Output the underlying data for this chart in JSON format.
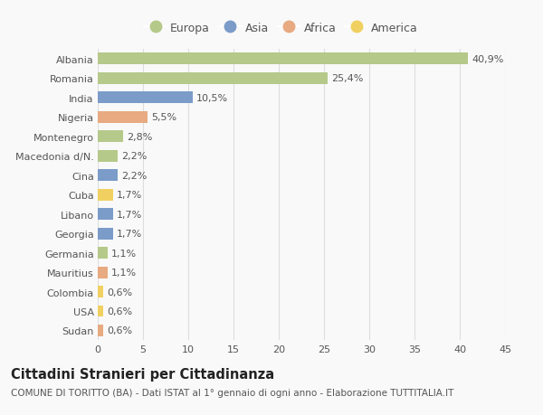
{
  "categories": [
    "Albania",
    "Romania",
    "India",
    "Nigeria",
    "Montenegro",
    "Macedonia d/N.",
    "Cina",
    "Cuba",
    "Libano",
    "Georgia",
    "Germania",
    "Mauritius",
    "Colombia",
    "USA",
    "Sudan"
  ],
  "values": [
    40.9,
    25.4,
    10.5,
    5.5,
    2.8,
    2.2,
    2.2,
    1.7,
    1.7,
    1.7,
    1.1,
    1.1,
    0.6,
    0.6,
    0.6
  ],
  "labels": [
    "40,9%",
    "25,4%",
    "10,5%",
    "5,5%",
    "2,8%",
    "2,2%",
    "2,2%",
    "1,7%",
    "1,7%",
    "1,7%",
    "1,1%",
    "1,1%",
    "0,6%",
    "0,6%",
    "0,6%"
  ],
  "continent": [
    "Europa",
    "Europa",
    "Asia",
    "Africa",
    "Europa",
    "Europa",
    "Asia",
    "America",
    "Asia",
    "Asia",
    "Europa",
    "Africa",
    "America",
    "America",
    "Africa"
  ],
  "colors": {
    "Europa": "#b5c98a",
    "Asia": "#7b9cc9",
    "Africa": "#e8aa80",
    "America": "#f0d060"
  },
  "title": "Cittadini Stranieri per Cittadinanza",
  "subtitle": "COMUNE DI TORITTO (BA) - Dati ISTAT al 1° gennaio di ogni anno - Elaborazione TUTTITALIA.IT",
  "xlim": [
    0,
    45
  ],
  "xticks": [
    0,
    5,
    10,
    15,
    20,
    25,
    30,
    35,
    40,
    45
  ],
  "background_color": "#f9f9f9",
  "grid_color": "#dddddd",
  "bar_height": 0.6,
  "label_fontsize": 8,
  "tick_fontsize": 8,
  "title_fontsize": 10.5,
  "subtitle_fontsize": 7.5,
  "text_color": "#555555",
  "title_color": "#222222"
}
